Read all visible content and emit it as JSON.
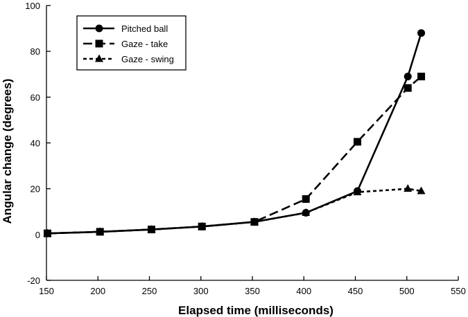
{
  "chart_data": {
    "type": "line",
    "xlabel": "Elapsed time (milliseconds)",
    "ylabel": "Angular change (degrees)",
    "xlim": [
      150,
      550
    ],
    "ylim": [
      -20,
      100
    ],
    "xticks": [
      150,
      200,
      250,
      300,
      350,
      400,
      450,
      500,
      550
    ],
    "yticks": [
      -20,
      0,
      20,
      40,
      60,
      80,
      100
    ],
    "grid": false,
    "legend_position": "top-left",
    "series": [
      {
        "name": "Pitched ball",
        "marker": "circle",
        "line_style": "solid",
        "color": "#000000",
        "x": [
          151,
          202,
          252,
          301,
          352,
          402,
          452,
          501,
          514
        ],
        "y": [
          0.5,
          1.2,
          2.2,
          3.5,
          5.5,
          9.5,
          19,
          69,
          88
        ]
      },
      {
        "name": "Gaze - take",
        "marker": "square",
        "line_style": "long-dash",
        "color": "#000000",
        "x": [
          151,
          202,
          252,
          301,
          352,
          402,
          452,
          501,
          514
        ],
        "y": [
          0.5,
          1.2,
          2.2,
          3.5,
          5.5,
          15.5,
          40.5,
          64,
          69
        ]
      },
      {
        "name": "Gaze - swing",
        "marker": "triangle",
        "line_style": "short-dash",
        "color": "#000000",
        "x": [
          151,
          202,
          252,
          301,
          352,
          402,
          452,
          501,
          514
        ],
        "y": [
          0.5,
          1.2,
          2.2,
          3.5,
          5.5,
          9.5,
          18.5,
          20,
          19
        ]
      }
    ]
  }
}
